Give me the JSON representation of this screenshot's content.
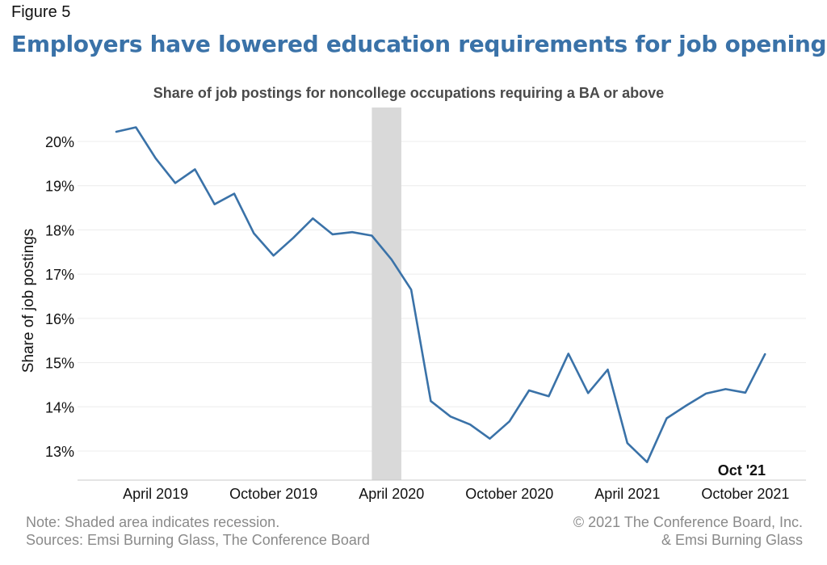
{
  "figure_label": "Figure 5",
  "headline": "Employers have lowered education requirements for job openings",
  "chart_data": {
    "type": "line",
    "title": "Share of job postings for noncollege occupations requiring a BA or above",
    "ylabel": "Share of job postings",
    "xlabel": "",
    "ylim": [
      12.5,
      20.6
    ],
    "y_ticks": [
      13,
      14,
      15,
      16,
      17,
      18,
      19,
      20
    ],
    "y_tick_suffix": "%",
    "x_ticks": [
      {
        "index": 2,
        "label": "April 2019"
      },
      {
        "index": 8,
        "label": "October 2019"
      },
      {
        "index": 14,
        "label": "April 2020"
      },
      {
        "index": 20,
        "label": "October 2020"
      },
      {
        "index": 26,
        "label": "April 2021"
      },
      {
        "index": 32,
        "label": "October 2021"
      }
    ],
    "recession_shade": {
      "start_index": 13,
      "end_index": 14.5
    },
    "annotation": "Oct '21",
    "grid": "horizontal",
    "series": [
      {
        "color": "#3a72a8",
        "values": [
          20.22,
          20.32,
          19.62,
          19.06,
          19.37,
          18.58,
          18.82,
          17.92,
          17.42,
          17.82,
          18.26,
          17.9,
          17.95,
          17.87,
          17.33,
          16.65,
          14.13,
          13.78,
          13.6,
          13.28,
          13.67,
          14.37,
          14.24,
          15.2,
          14.31,
          14.84,
          13.18,
          12.75,
          13.74,
          14.03,
          14.3,
          14.4,
          14.32,
          15.19
        ]
      }
    ]
  },
  "notes": {
    "left_line1": "Note: Shaded area indicates recession.",
    "left_line2": "Sources: Emsi Burning Glass, The Conference Board",
    "right_line1": "© 2021 The Conference Board, Inc.",
    "right_line2": "& Emsi Burning Glass"
  }
}
